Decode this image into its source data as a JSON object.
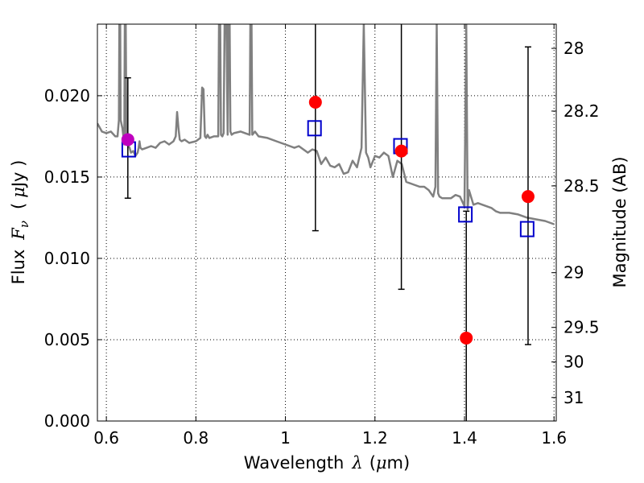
{
  "chart_data": {
    "type": "scatter",
    "xlabel_text": "Wavelength",
    "xlabel_symbol": "λ",
    "xlabel_unit": "(",
    "xlabel_unit_mu": "μ",
    "xlabel_unit_rest": "m)",
    "ylabel_text": "Flux",
    "ylabel_symbol": "F",
    "ylabel_sub": "ν",
    "ylabel_unit_open": "(",
    "ylabel_unit_mu": "μ",
    "ylabel_unit_rest": "Jy )",
    "y2label": "Magnitude (AB)",
    "xlim": [
      0.58,
      1.605
    ],
    "ylim": [
      0.0,
      0.0244
    ],
    "grid": true,
    "grid_style": "dotted",
    "x_ticks": [
      {
        "value": 0.6,
        "label": "0.6"
      },
      {
        "value": 0.8,
        "label": "0.8"
      },
      {
        "value": 1.0,
        "label": "1"
      },
      {
        "value": 1.2,
        "label": "1.2"
      },
      {
        "value": 1.4,
        "label": "1.4"
      },
      {
        "value": 1.6,
        "label": "1.6"
      }
    ],
    "y_ticks": [
      {
        "value": 0.0,
        "label": "0.000"
      },
      {
        "value": 0.005,
        "label": "0.005"
      },
      {
        "value": 0.01,
        "label": "0.010"
      },
      {
        "value": 0.015,
        "label": "0.015"
      },
      {
        "value": 0.02,
        "label": "0.020"
      }
    ],
    "y2_ticks": [
      {
        "value": 28,
        "label": "28"
      },
      {
        "value": 28.2,
        "label": "28.2"
      },
      {
        "value": 28.5,
        "label": "28.5"
      },
      {
        "value": 29,
        "label": "29"
      },
      {
        "value": 29.5,
        "label": "29.5"
      },
      {
        "value": 30,
        "label": "30"
      },
      {
        "value": 31,
        "label": "31"
      }
    ],
    "colors": {
      "observed": "#ff0000",
      "observed_first": "#bf00bf",
      "model_photometry": "#0000cc",
      "model_spectrum": "#808080",
      "errorbar": "#000000"
    },
    "series": [
      {
        "kind": "model_spectrum",
        "x": [
          0.58,
          0.59,
          0.6,
          0.61,
          0.62,
          0.625,
          0.628,
          0.63,
          0.632,
          0.636,
          0.64,
          0.642,
          0.645,
          0.648,
          0.652,
          0.655,
          0.66,
          0.665,
          0.67,
          0.672,
          0.674,
          0.676,
          0.68,
          0.69,
          0.7,
          0.71,
          0.72,
          0.73,
          0.74,
          0.75,
          0.755,
          0.758,
          0.761,
          0.764,
          0.768,
          0.775,
          0.785,
          0.8,
          0.81,
          0.814,
          0.817,
          0.82,
          0.823,
          0.826,
          0.83,
          0.84,
          0.85,
          0.853,
          0.856,
          0.859,
          0.862,
          0.866,
          0.871,
          0.874,
          0.877,
          0.88,
          0.885,
          0.9,
          0.91,
          0.92,
          0.923,
          0.926,
          0.929,
          0.932,
          0.94,
          0.96,
          0.98,
          1.0,
          1.01,
          1.02,
          1.03,
          1.05,
          1.06,
          1.07,
          1.08,
          1.09,
          1.1,
          1.11,
          1.12,
          1.13,
          1.14,
          1.15,
          1.16,
          1.17,
          1.175,
          1.18,
          1.185,
          1.19,
          1.2,
          1.21,
          1.22,
          1.23,
          1.24,
          1.25,
          1.26,
          1.27,
          1.28,
          1.29,
          1.3,
          1.31,
          1.32,
          1.33,
          1.335,
          1.338,
          1.341,
          1.344,
          1.35,
          1.36,
          1.37,
          1.38,
          1.39,
          1.395,
          1.4,
          1.404,
          1.407,
          1.41,
          1.42,
          1.43,
          1.44,
          1.45,
          1.46,
          1.47,
          1.48,
          1.5,
          1.52,
          1.54,
          1.56,
          1.58,
          1.6
        ],
        "y": [
          0.0183,
          0.0178,
          0.0177,
          0.0178,
          0.0175,
          0.0175,
          0.0185,
          0.03,
          0.0185,
          0.018,
          0.017,
          0.03,
          0.0172,
          0.017,
          0.0168,
          0.0165,
          0.0166,
          0.0163,
          0.0165,
          0.0168,
          0.0172,
          0.0168,
          0.0167,
          0.0168,
          0.0169,
          0.0168,
          0.0171,
          0.0172,
          0.017,
          0.0172,
          0.0175,
          0.019,
          0.018,
          0.0173,
          0.0172,
          0.0173,
          0.0171,
          0.0172,
          0.0174,
          0.0205,
          0.0204,
          0.0175,
          0.0174,
          0.0176,
          0.0174,
          0.0175,
          0.0175,
          0.03,
          0.0176,
          0.0175,
          0.0177,
          0.03,
          0.0176,
          0.03,
          0.0178,
          0.0176,
          0.0177,
          0.0178,
          0.0177,
          0.0176,
          0.03,
          0.0176,
          0.0177,
          0.0178,
          0.0175,
          0.0174,
          0.0172,
          0.017,
          0.0169,
          0.0168,
          0.0169,
          0.0165,
          0.0167,
          0.0166,
          0.0158,
          0.0162,
          0.0157,
          0.0156,
          0.0158,
          0.0152,
          0.0153,
          0.016,
          0.0156,
          0.0168,
          0.0244,
          0.0165,
          0.0162,
          0.0156,
          0.0163,
          0.0162,
          0.0165,
          0.0163,
          0.015,
          0.016,
          0.0158,
          0.0147,
          0.0146,
          0.0145,
          0.0144,
          0.0144,
          0.0142,
          0.0138,
          0.0144,
          0.0244,
          0.014,
          0.0138,
          0.0137,
          0.0137,
          0.0137,
          0.0139,
          0.0138,
          0.0135,
          0.0132,
          0.0244,
          0.013,
          0.0142,
          0.0133,
          0.0134,
          0.0133,
          0.0132,
          0.0131,
          0.0129,
          0.0128,
          0.0128,
          0.0127,
          0.0125,
          0.0124,
          0.0123,
          0.0121
        ]
      },
      {
        "kind": "observed",
        "x": [
          0.648,
          1.067,
          1.259,
          1.404,
          1.542
        ],
        "y": [
          0.0173,
          0.0196,
          0.0166,
          0.0051,
          0.0138
        ],
        "yerr_low": [
          0.0137,
          0.0117,
          0.0081,
          0.0,
          0.0047
        ],
        "yerr_high": [
          0.0211,
          0.0276,
          0.0271,
          0.0129,
          0.023
        ]
      },
      {
        "kind": "model_photometry",
        "x": [
          0.65,
          1.065,
          1.257,
          1.402,
          1.54
        ],
        "y": [
          0.0167,
          0.018,
          0.0169,
          0.0127,
          0.0118
        ]
      }
    ]
  }
}
